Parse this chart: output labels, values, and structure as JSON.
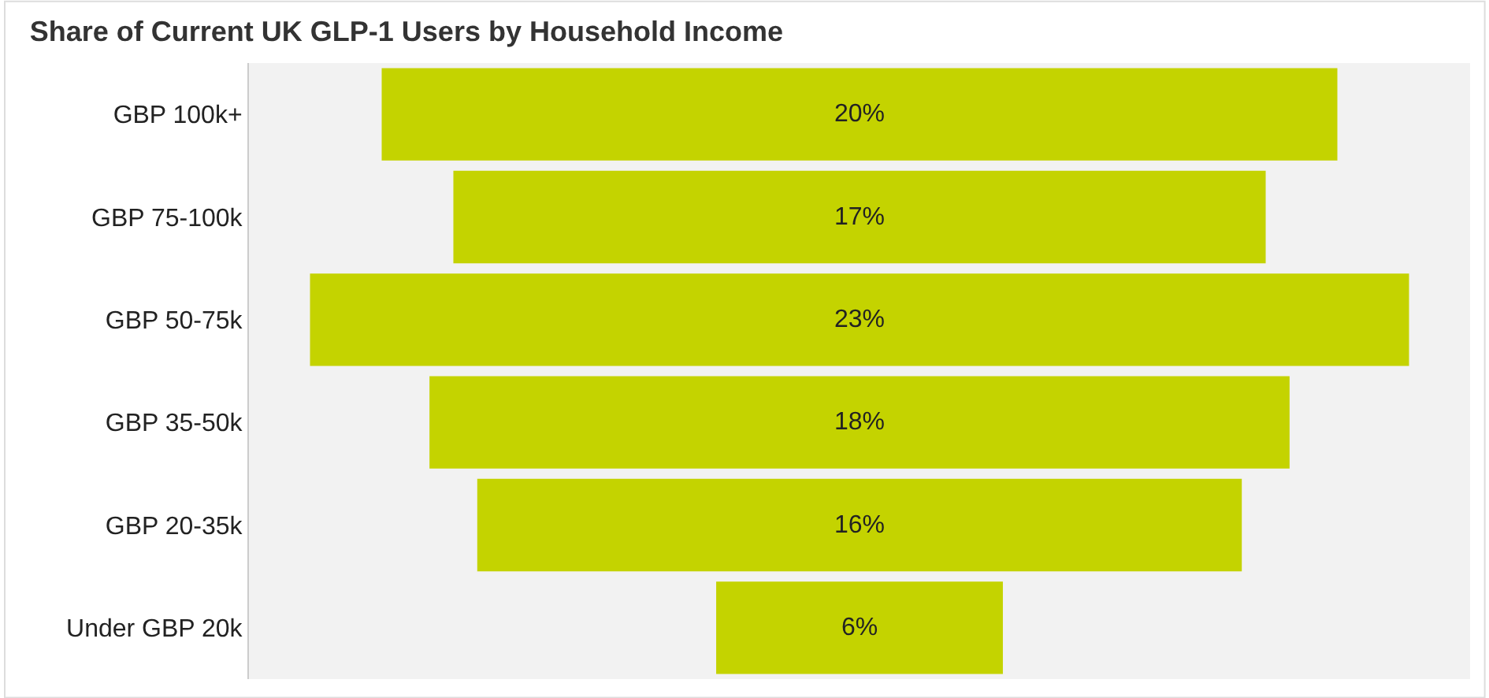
{
  "chart_data": {
    "type": "other",
    "title": "Share of Current UK GLP-1 Users by Household Income",
    "categories": [
      "GBP 100k+",
      "GBP 75-100k",
      "GBP 50-75k",
      "GBP 35-50k",
      "GBP 20-35k",
      "Under GBP 20k"
    ],
    "values": [
      20,
      17,
      23,
      18,
      16,
      6
    ],
    "value_labels": [
      "20%",
      "17%",
      "23%",
      "18%",
      "16%",
      "6%"
    ],
    "color": "#c4d300"
  }
}
